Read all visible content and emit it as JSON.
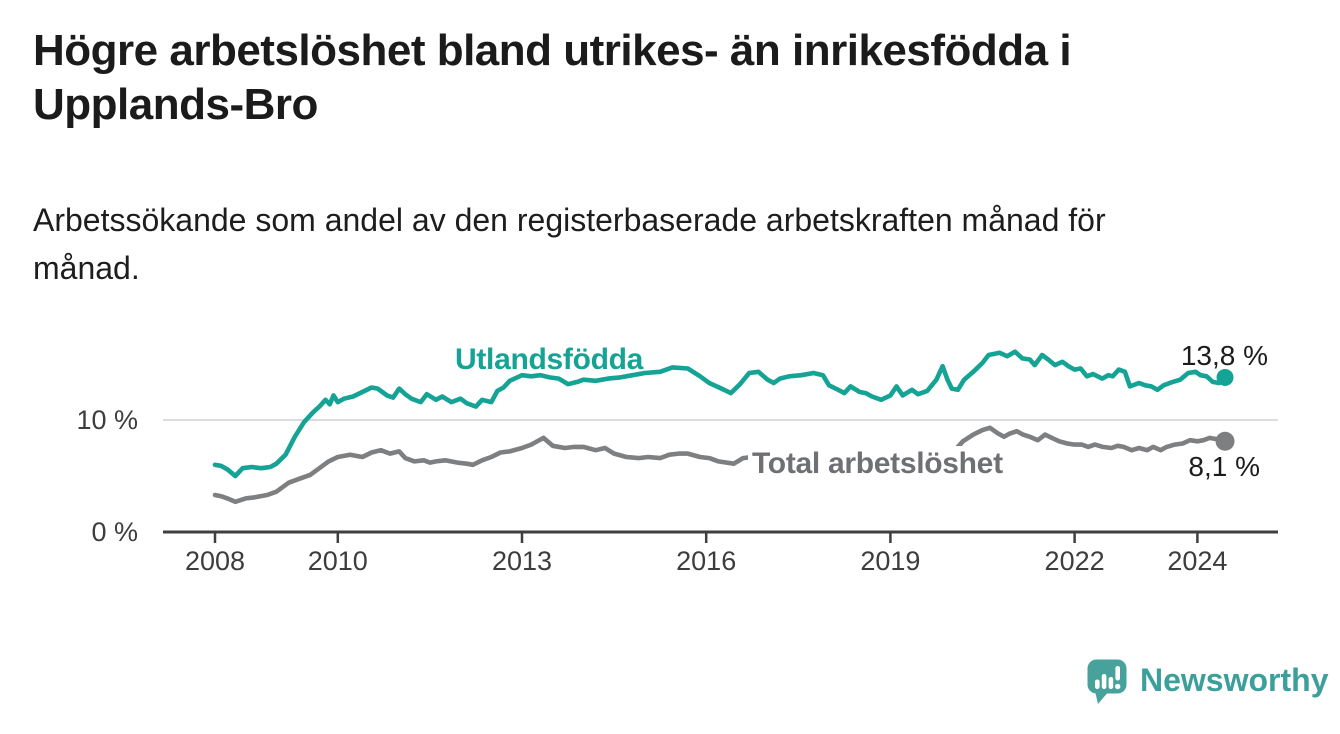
{
  "header": {
    "title_line1": "Högre arbetslöshet bland utrikes- än inrikesfödda i",
    "title_line2": "Upplands-Bro",
    "subtitle_line1": "Arbetssökande som andel av den registerbaserade arbetskraften månad för",
    "subtitle_line2": "månad."
  },
  "chart_data": {
    "type": "line",
    "title": "Högre arbetslöshet bland utrikes- än inrikesfödda i Upplands-Bro",
    "xlabel": "",
    "ylabel": "Arbetssökande som andel av den registerbaserade arbetskraften",
    "x_unit": "year (monthly observations)",
    "xlim": [
      2007.2,
      2025.3
    ],
    "ylim": [
      0,
      17.5
    ],
    "grid": "horizontal gridline at 10 % only",
    "legend": "inline series labels",
    "y_ticks": [
      {
        "value": 0,
        "label": "0 %"
      },
      {
        "value": 10,
        "label": "10 %"
      }
    ],
    "x_ticks": [
      {
        "value": 2008,
        "label": "2008"
      },
      {
        "value": 2010,
        "label": "2010"
      },
      {
        "value": 2013,
        "label": "2013"
      },
      {
        "value": 2016,
        "label": "2016"
      },
      {
        "value": 2019,
        "label": "2019"
      },
      {
        "value": 2022,
        "label": "2022"
      },
      {
        "value": 2024,
        "label": "2024"
      }
    ],
    "series": [
      {
        "name": "Utlandsfödda",
        "color": "#14a394",
        "end_value": 13.8,
        "end_label": "13,8 %",
        "points": [
          [
            2008.0,
            6.0
          ],
          [
            2008.1,
            5.9
          ],
          [
            2008.2,
            5.6
          ],
          [
            2008.33,
            5.0
          ],
          [
            2008.45,
            5.7
          ],
          [
            2008.6,
            5.8
          ],
          [
            2008.75,
            5.7
          ],
          [
            2008.9,
            5.8
          ],
          [
            2009.0,
            6.1
          ],
          [
            2009.15,
            6.9
          ],
          [
            2009.3,
            8.5
          ],
          [
            2009.45,
            9.8
          ],
          [
            2009.6,
            10.7
          ],
          [
            2009.7,
            11.2
          ],
          [
            2009.8,
            11.8
          ],
          [
            2009.87,
            11.4
          ],
          [
            2009.93,
            12.2
          ],
          [
            2010.0,
            11.6
          ],
          [
            2010.1,
            11.9
          ],
          [
            2010.25,
            12.1
          ],
          [
            2010.4,
            12.5
          ],
          [
            2010.55,
            12.9
          ],
          [
            2010.65,
            12.8
          ],
          [
            2010.8,
            12.2
          ],
          [
            2010.9,
            12.0
          ],
          [
            2011.0,
            12.8
          ],
          [
            2011.1,
            12.3
          ],
          [
            2011.2,
            11.9
          ],
          [
            2011.35,
            11.6
          ],
          [
            2011.45,
            12.3
          ],
          [
            2011.6,
            11.8
          ],
          [
            2011.7,
            12.1
          ],
          [
            2011.85,
            11.6
          ],
          [
            2012.0,
            11.9
          ],
          [
            2012.1,
            11.5
          ],
          [
            2012.25,
            11.2
          ],
          [
            2012.35,
            11.8
          ],
          [
            2012.5,
            11.6
          ],
          [
            2012.6,
            12.6
          ],
          [
            2012.7,
            12.9
          ],
          [
            2012.8,
            13.5
          ],
          [
            2013.0,
            14.0
          ],
          [
            2013.15,
            13.9
          ],
          [
            2013.3,
            14.0
          ],
          [
            2013.45,
            13.8
          ],
          [
            2013.6,
            13.7
          ],
          [
            2013.75,
            13.2
          ],
          [
            2013.9,
            13.4
          ],
          [
            2014.0,
            13.6
          ],
          [
            2014.2,
            13.5
          ],
          [
            2014.4,
            13.7
          ],
          [
            2014.6,
            13.8
          ],
          [
            2014.8,
            14.0
          ],
          [
            2015.0,
            14.2
          ],
          [
            2015.25,
            14.3
          ],
          [
            2015.45,
            14.7
          ],
          [
            2015.7,
            14.6
          ],
          [
            2015.9,
            13.9
          ],
          [
            2016.05,
            13.3
          ],
          [
            2016.25,
            12.8
          ],
          [
            2016.4,
            12.4
          ],
          [
            2016.55,
            13.2
          ],
          [
            2016.7,
            14.2
          ],
          [
            2016.85,
            14.3
          ],
          [
            2017.0,
            13.6
          ],
          [
            2017.1,
            13.3
          ],
          [
            2017.2,
            13.7
          ],
          [
            2017.35,
            13.9
          ],
          [
            2017.55,
            14.0
          ],
          [
            2017.75,
            14.2
          ],
          [
            2017.9,
            14.0
          ],
          [
            2018.0,
            13.1
          ],
          [
            2018.15,
            12.7
          ],
          [
            2018.25,
            12.4
          ],
          [
            2018.35,
            13.0
          ],
          [
            2018.5,
            12.5
          ],
          [
            2018.6,
            12.4
          ],
          [
            2018.7,
            12.1
          ],
          [
            2018.85,
            11.8
          ],
          [
            2019.0,
            12.2
          ],
          [
            2019.1,
            13.0
          ],
          [
            2019.2,
            12.2
          ],
          [
            2019.35,
            12.7
          ],
          [
            2019.45,
            12.3
          ],
          [
            2019.6,
            12.6
          ],
          [
            2019.75,
            13.6
          ],
          [
            2019.85,
            14.8
          ],
          [
            2019.93,
            13.6
          ],
          [
            2020.0,
            12.8
          ],
          [
            2020.1,
            12.7
          ],
          [
            2020.2,
            13.6
          ],
          [
            2020.35,
            14.3
          ],
          [
            2020.5,
            15.1
          ],
          [
            2020.6,
            15.8
          ],
          [
            2020.78,
            16.0
          ],
          [
            2020.9,
            15.7
          ],
          [
            2021.03,
            16.1
          ],
          [
            2021.15,
            15.5
          ],
          [
            2021.27,
            15.4
          ],
          [
            2021.35,
            14.9
          ],
          [
            2021.47,
            15.8
          ],
          [
            2021.57,
            15.4
          ],
          [
            2021.68,
            14.9
          ],
          [
            2021.8,
            15.2
          ],
          [
            2021.9,
            14.8
          ],
          [
            2022.0,
            14.5
          ],
          [
            2022.1,
            14.6
          ],
          [
            2022.2,
            13.9
          ],
          [
            2022.3,
            14.1
          ],
          [
            2022.45,
            13.7
          ],
          [
            2022.55,
            14.0
          ],
          [
            2022.62,
            13.9
          ],
          [
            2022.72,
            14.5
          ],
          [
            2022.82,
            14.3
          ],
          [
            2022.9,
            13.0
          ],
          [
            2023.05,
            13.3
          ],
          [
            2023.15,
            13.1
          ],
          [
            2023.25,
            13.0
          ],
          [
            2023.35,
            12.7
          ],
          [
            2023.45,
            13.1
          ],
          [
            2023.6,
            13.4
          ],
          [
            2023.72,
            13.6
          ],
          [
            2023.85,
            14.2
          ],
          [
            2023.97,
            14.3
          ],
          [
            2024.05,
            14.0
          ],
          [
            2024.15,
            13.9
          ],
          [
            2024.25,
            13.4
          ],
          [
            2024.35,
            13.3
          ],
          [
            2024.45,
            13.8
          ]
        ]
      },
      {
        "name": "Total arbetslöshet",
        "color": "#7e7f81",
        "end_value": 8.1,
        "end_label": "8,1 %",
        "points": [
          [
            2008.0,
            3.3
          ],
          [
            2008.1,
            3.2
          ],
          [
            2008.2,
            3.0
          ],
          [
            2008.33,
            2.7
          ],
          [
            2008.5,
            3.0
          ],
          [
            2008.65,
            3.1
          ],
          [
            2008.85,
            3.3
          ],
          [
            2009.0,
            3.6
          ],
          [
            2009.2,
            4.4
          ],
          [
            2009.4,
            4.8
          ],
          [
            2009.55,
            5.1
          ],
          [
            2009.7,
            5.7
          ],
          [
            2009.85,
            6.3
          ],
          [
            2010.0,
            6.7
          ],
          [
            2010.2,
            6.9
          ],
          [
            2010.4,
            6.7
          ],
          [
            2010.55,
            7.1
          ],
          [
            2010.7,
            7.3
          ],
          [
            2010.85,
            7.0
          ],
          [
            2011.0,
            7.2
          ],
          [
            2011.1,
            6.6
          ],
          [
            2011.25,
            6.3
          ],
          [
            2011.4,
            6.4
          ],
          [
            2011.5,
            6.2
          ],
          [
            2011.6,
            6.3
          ],
          [
            2011.75,
            6.4
          ],
          [
            2011.95,
            6.2
          ],
          [
            2012.1,
            6.1
          ],
          [
            2012.2,
            6.0
          ],
          [
            2012.35,
            6.4
          ],
          [
            2012.5,
            6.7
          ],
          [
            2012.65,
            7.1
          ],
          [
            2012.8,
            7.2
          ],
          [
            2013.0,
            7.5
          ],
          [
            2013.15,
            7.8
          ],
          [
            2013.35,
            8.4
          ],
          [
            2013.5,
            7.7
          ],
          [
            2013.7,
            7.5
          ],
          [
            2013.85,
            7.6
          ],
          [
            2014.0,
            7.6
          ],
          [
            2014.2,
            7.3
          ],
          [
            2014.35,
            7.5
          ],
          [
            2014.5,
            7.0
          ],
          [
            2014.7,
            6.7
          ],
          [
            2014.9,
            6.6
          ],
          [
            2015.05,
            6.7
          ],
          [
            2015.25,
            6.6
          ],
          [
            2015.4,
            6.9
          ],
          [
            2015.55,
            7.0
          ],
          [
            2015.7,
            7.0
          ],
          [
            2015.9,
            6.7
          ],
          [
            2016.05,
            6.6
          ],
          [
            2016.2,
            6.3
          ],
          [
            2016.45,
            6.1
          ],
          [
            2016.6,
            6.6
          ],
          [
            2016.75,
            6.7
          ],
          [
            2016.9,
            6.6
          ],
          [
            2017.1,
            6.5
          ],
          [
            2017.3,
            6.3
          ],
          [
            2017.5,
            6.2
          ],
          [
            2017.7,
            6.1
          ],
          [
            2017.9,
            6.0
          ],
          [
            2018.1,
            5.9
          ],
          [
            2018.3,
            5.8
          ],
          [
            2018.5,
            5.9
          ],
          [
            2018.7,
            6.0
          ],
          [
            2018.9,
            6.1
          ],
          [
            2019.1,
            6.2
          ],
          [
            2019.3,
            6.3
          ],
          [
            2019.5,
            6.4
          ],
          [
            2019.7,
            6.5
          ],
          [
            2019.9,
            6.7
          ],
          [
            2020.0,
            7.0
          ],
          [
            2020.18,
            8.1
          ],
          [
            2020.35,
            8.7
          ],
          [
            2020.5,
            9.1
          ],
          [
            2020.62,
            9.3
          ],
          [
            2020.75,
            8.8
          ],
          [
            2020.85,
            8.5
          ],
          [
            2020.95,
            8.8
          ],
          [
            2021.06,
            9.0
          ],
          [
            2021.16,
            8.7
          ],
          [
            2021.27,
            8.5
          ],
          [
            2021.4,
            8.2
          ],
          [
            2021.52,
            8.7
          ],
          [
            2021.63,
            8.4
          ],
          [
            2021.75,
            8.1
          ],
          [
            2021.88,
            7.9
          ],
          [
            2022.0,
            7.8
          ],
          [
            2022.12,
            7.8
          ],
          [
            2022.22,
            7.6
          ],
          [
            2022.33,
            7.8
          ],
          [
            2022.46,
            7.6
          ],
          [
            2022.6,
            7.5
          ],
          [
            2022.7,
            7.7
          ],
          [
            2022.8,
            7.6
          ],
          [
            2022.93,
            7.3
          ],
          [
            2023.05,
            7.5
          ],
          [
            2023.18,
            7.3
          ],
          [
            2023.28,
            7.6
          ],
          [
            2023.4,
            7.3
          ],
          [
            2023.5,
            7.6
          ],
          [
            2023.63,
            7.8
          ],
          [
            2023.76,
            7.9
          ],
          [
            2023.88,
            8.2
          ],
          [
            2024.0,
            8.1
          ],
          [
            2024.1,
            8.2
          ],
          [
            2024.2,
            8.4
          ],
          [
            2024.3,
            8.3
          ],
          [
            2024.45,
            8.1
          ]
        ]
      }
    ]
  },
  "annotations": {
    "series_label_1": "Utlandsfödda",
    "series_label_2": "Total arbetslöshet",
    "value_label_1": "13,8 %",
    "value_label_2": "8,1 %"
  },
  "branding": {
    "wordmark": "Newsworthy",
    "logo_icon": "speech-bubble-with-bar-chart-and-exclamation"
  },
  "colors": {
    "accent_teal": "#14a394",
    "line_gray": "#7e7f81",
    "label_gray": "#6f7074",
    "title_text": "#1b1b1b",
    "axis_text": "#3d3d3d",
    "axis_line": "#3f3f3f",
    "gridline": "#dcdcdc",
    "background": "#ffffff",
    "logo_teal": "#47a29c"
  }
}
